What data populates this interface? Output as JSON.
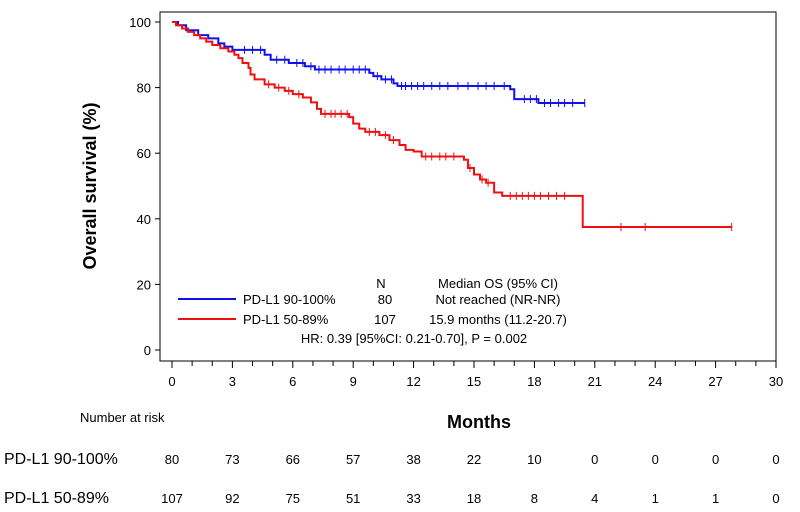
{
  "chart_data": {
    "type": "line",
    "title": "",
    "xlabel": "Months",
    "ylabel": "Overall  survival (%)",
    "xlim": [
      0,
      30
    ],
    "ylim": [
      0,
      100
    ],
    "xticks": [
      0,
      3,
      6,
      9,
      12,
      15,
      18,
      21,
      24,
      27,
      30
    ],
    "yticks": [
      0,
      20,
      40,
      60,
      80,
      100
    ],
    "grid": false,
    "legend": {
      "header_n": "N",
      "header_median": "Median OS (95% CI)",
      "entries": [
        {
          "label": "PD-L1 90-100%",
          "n": "80",
          "median": "Not reached (NR-NR)"
        },
        {
          "label": "PD-L1 50-89%",
          "n": "107",
          "median": "15.9 months (11.2-20.7)"
        }
      ],
      "hr_text": "HR: 0.39 [95%CI: 0.21-0.70], P = 0.002"
    },
    "series": [
      {
        "name": "PD-L1 90-100%",
        "color": "#1010ee",
        "steps": [
          [
            0,
            100
          ],
          [
            0.3,
            99
          ],
          [
            0.7,
            97.5
          ],
          [
            1.3,
            96
          ],
          [
            1.8,
            95
          ],
          [
            2.3,
            93.5
          ],
          [
            2.6,
            92.5
          ],
          [
            3.0,
            91.5
          ],
          [
            4.6,
            90
          ],
          [
            4.9,
            88.5
          ],
          [
            5.8,
            87.5
          ],
          [
            6.6,
            86.5
          ],
          [
            7.1,
            85.5
          ],
          [
            9.8,
            84.5
          ],
          [
            10.0,
            83.5
          ],
          [
            10.4,
            82.5
          ],
          [
            11.0,
            81.3
          ],
          [
            11.2,
            80.5
          ],
          [
            16.8,
            79.5
          ],
          [
            17.0,
            76.5
          ],
          [
            18.2,
            75.3
          ],
          [
            20.5,
            75.3
          ]
        ],
        "censors": [
          3.6,
          4.0,
          4.4,
          5.2,
          5.6,
          6.2,
          6.5,
          6.9,
          7.3,
          7.6,
          7.9,
          8.3,
          8.6,
          9.0,
          9.3,
          9.6,
          10.2,
          10.6,
          10.9,
          11.4,
          11.6,
          11.9,
          12.2,
          12.5,
          12.9,
          13.3,
          13.7,
          14.2,
          14.7,
          15.2,
          15.6,
          16.0,
          16.5,
          17.5,
          17.8,
          18.1,
          18.5,
          18.8,
          19.2,
          19.5,
          19.9,
          20.5
        ]
      },
      {
        "name": "PD-L1 50-89%",
        "color": "#ee1010",
        "steps": [
          [
            0,
            100
          ],
          [
            0.2,
            99
          ],
          [
            0.5,
            98
          ],
          [
            0.8,
            97
          ],
          [
            1.1,
            96
          ],
          [
            1.4,
            95
          ],
          [
            1.7,
            94
          ],
          [
            2.0,
            93
          ],
          [
            2.4,
            92
          ],
          [
            2.8,
            91
          ],
          [
            3.1,
            90
          ],
          [
            3.3,
            89
          ],
          [
            3.5,
            87.5
          ],
          [
            3.8,
            86
          ],
          [
            3.9,
            84
          ],
          [
            4.1,
            82.5
          ],
          [
            4.6,
            81
          ],
          [
            5.1,
            80
          ],
          [
            5.6,
            79
          ],
          [
            6.0,
            78
          ],
          [
            6.5,
            77
          ],
          [
            6.9,
            75.5
          ],
          [
            7.2,
            73.5
          ],
          [
            7.4,
            72
          ],
          [
            8.8,
            71
          ],
          [
            9.0,
            69
          ],
          [
            9.3,
            67.5
          ],
          [
            9.6,
            66.5
          ],
          [
            10.3,
            65.5
          ],
          [
            10.8,
            64
          ],
          [
            11.3,
            62.5
          ],
          [
            11.6,
            61
          ],
          [
            12.0,
            60.5
          ],
          [
            12.4,
            59
          ],
          [
            14.5,
            58
          ],
          [
            14.7,
            55.5
          ],
          [
            15.0,
            53.5
          ],
          [
            15.3,
            52
          ],
          [
            15.6,
            51
          ],
          [
            16.0,
            48
          ],
          [
            16.4,
            47
          ],
          [
            20.4,
            37.5
          ],
          [
            27.8,
            37.5
          ]
        ],
        "censors": [
          4.8,
          5.3,
          5.8,
          6.3,
          7.6,
          7.9,
          8.1,
          8.4,
          8.7,
          9.8,
          10.1,
          10.6,
          11.0,
          12.6,
          12.9,
          13.3,
          13.6,
          14.0,
          14.8,
          15.4,
          15.7,
          16.8,
          17.1,
          17.4,
          17.7,
          18.0,
          18.3,
          18.7,
          19.1,
          19.5,
          22.3,
          23.5,
          27.8
        ]
      }
    ],
    "risk_table": {
      "title": "Number at risk",
      "times": [
        0,
        3,
        6,
        9,
        12,
        15,
        18,
        21,
        24,
        27,
        30
      ],
      "rows": [
        {
          "label": "PD-L1 90-100%",
          "values": [
            "80",
            "73",
            "66",
            "57",
            "38",
            "22",
            "10",
            "0",
            "0",
            "0",
            "0"
          ]
        },
        {
          "label": "PD-L1 50-89%",
          "values": [
            "107",
            "92",
            "75",
            "51",
            "33",
            "18",
            "8",
            "4",
            "1",
            "1",
            "0"
          ]
        }
      ]
    }
  }
}
